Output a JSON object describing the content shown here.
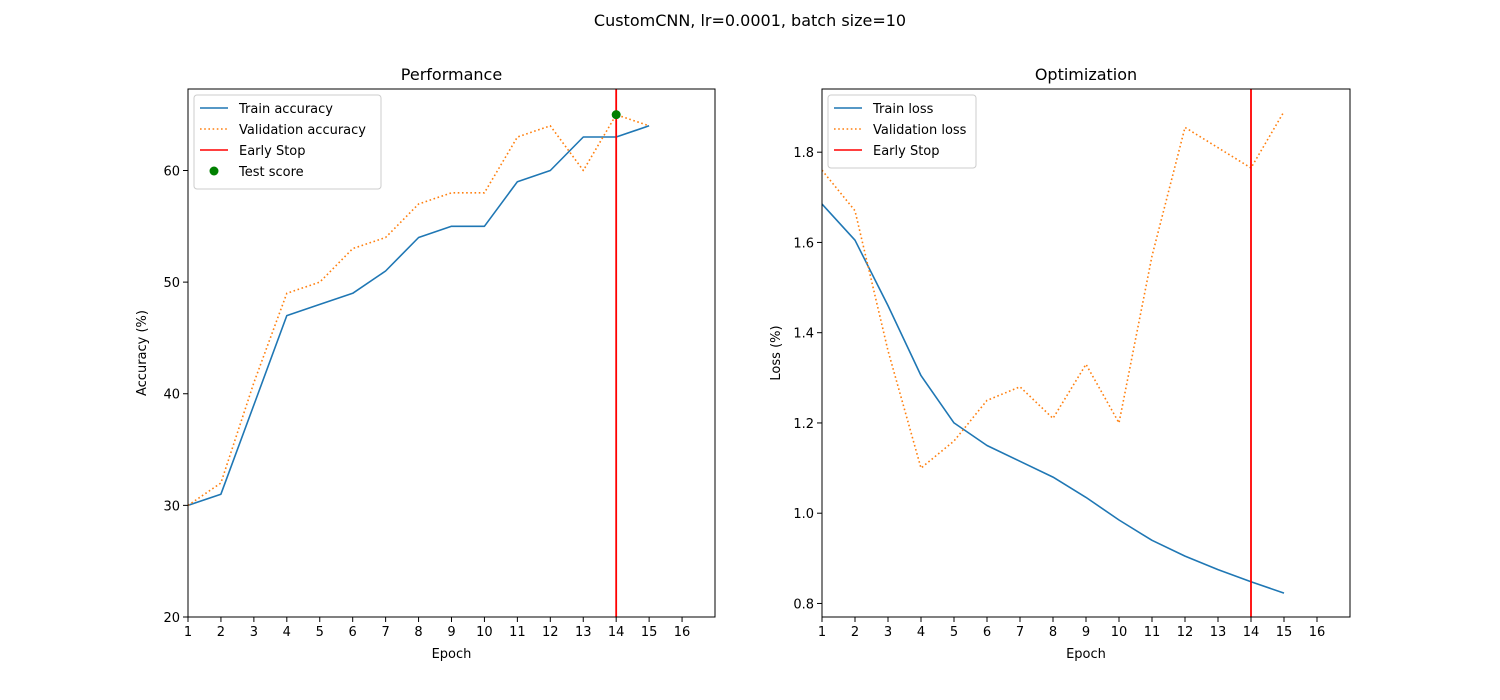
{
  "figure": {
    "suptitle": "CustomCNN, lr=0.0001, batch size=10"
  },
  "chart_data": [
    {
      "type": "line",
      "title": "Performance",
      "xlabel": "Epoch",
      "ylabel": "Accuracy (%)",
      "xlim": [
        1,
        17
      ],
      "ylim": [
        20,
        67.3
      ],
      "xticks": [
        1,
        2,
        3,
        4,
        5,
        6,
        7,
        8,
        9,
        10,
        11,
        12,
        13,
        14,
        15,
        16
      ],
      "yticks": [
        20,
        30,
        40,
        50,
        60
      ],
      "legend_position": "upper-left",
      "series": [
        {
          "name": "Train accuracy",
          "style": "solid",
          "color": "#1f77b4",
          "x": [
            1,
            2,
            3,
            4,
            5,
            6,
            7,
            8,
            9,
            10,
            11,
            12,
            13,
            14,
            15
          ],
          "y": [
            30,
            31,
            39,
            47,
            48,
            49,
            51,
            54,
            55,
            55,
            59,
            60,
            63,
            63,
            64
          ]
        },
        {
          "name": "Validation accuracy",
          "style": "dotted",
          "color": "#ff7f0e",
          "x": [
            1,
            2,
            3,
            4,
            5,
            6,
            7,
            8,
            9,
            10,
            11,
            12,
            13,
            14,
            15
          ],
          "y": [
            30,
            32,
            41,
            49,
            50,
            53,
            54,
            57,
            58,
            58,
            63,
            64,
            60,
            65,
            64
          ]
        }
      ],
      "vline": {
        "name": "Early Stop",
        "x": 14,
        "color": "#ff0000"
      },
      "point": {
        "name": "Test score",
        "x": 14,
        "y": 65,
        "color": "#008000"
      }
    },
    {
      "type": "line",
      "title": "Optimization",
      "xlabel": "Epoch",
      "ylabel": "Loss (%)",
      "xlim": [
        1,
        17
      ],
      "ylim": [
        0.77,
        1.94
      ],
      "xticks": [
        1,
        2,
        3,
        4,
        5,
        6,
        7,
        8,
        9,
        10,
        11,
        12,
        13,
        14,
        15,
        16
      ],
      "yticks": [
        0.8,
        1.0,
        1.2,
        1.4,
        1.6,
        1.8
      ],
      "ytick_labels": [
        "0.8",
        "1.0",
        "1.2",
        "1.4",
        "1.6",
        "1.8"
      ],
      "legend_position": "upper-left",
      "series": [
        {
          "name": "Train loss",
          "style": "solid",
          "color": "#1f77b4",
          "x": [
            1,
            2,
            3,
            4,
            5,
            6,
            7,
            8,
            9,
            10,
            11,
            12,
            13,
            14,
            15
          ],
          "y": [
            1.685,
            1.605,
            1.46,
            1.305,
            1.2,
            1.15,
            1.115,
            1.08,
            1.035,
            0.985,
            0.94,
            0.905,
            0.875,
            0.848,
            0.823
          ]
        },
        {
          "name": "Validation loss",
          "style": "dotted",
          "color": "#ff7f0e",
          "x": [
            1,
            2,
            3,
            4,
            5,
            6,
            7,
            8,
            9,
            10,
            11,
            12,
            13,
            14,
            15
          ],
          "y": [
            1.76,
            1.67,
            1.36,
            1.1,
            1.16,
            1.25,
            1.28,
            1.21,
            1.33,
            1.2,
            1.57,
            1.855,
            1.81,
            1.765,
            1.89
          ]
        }
      ],
      "vline": {
        "name": "Early Stop",
        "x": 14,
        "color": "#ff0000"
      }
    }
  ]
}
